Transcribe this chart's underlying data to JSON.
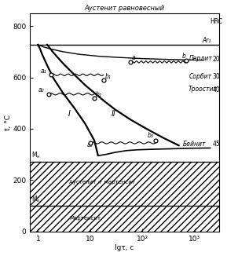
{
  "title": "Аустенит равновесный",
  "xlabel": "lgτ, c",
  "ylabel": "t, °C",
  "xlim_log": [
    0.7,
    3000
  ],
  "ylim": [
    0,
    850
  ],
  "Ar1_y": 727,
  "Mn_y": 270,
  "Mk_y": 100,
  "curve_I_x": [
    1.0,
    1.1,
    1.2,
    1.4,
    1.6,
    2.0,
    3.0,
    5.0,
    8.0,
    12.0,
    14.0
  ],
  "curve_I_y": [
    727,
    710,
    690,
    660,
    635,
    595,
    540,
    480,
    420,
    355,
    300
  ],
  "curve_II_x": [
    1.5,
    2.0,
    3.0,
    5.0,
    8.0,
    12.0,
    18.0,
    30.0,
    60.0,
    120.0,
    250.0,
    500.0
  ],
  "curve_II_y": [
    727,
    695,
    655,
    610,
    570,
    540,
    510,
    475,
    435,
    400,
    365,
    335
  ],
  "top_shelf_x": [
    1.0,
    1.3,
    1.8,
    3.0,
    6.0,
    15.0,
    40.0,
    100.0,
    300.0,
    700.0,
    1500.0
  ],
  "top_shelf_y": [
    727,
    718,
    710,
    700,
    690,
    682,
    677,
    673,
    670,
    668,
    667
  ],
  "bainite_bot_x": [
    14.0,
    20.0,
    30.0,
    50.0,
    80.0,
    150.0,
    350.0,
    800.0,
    2000.0
  ],
  "bainite_bot_y": [
    295,
    300,
    308,
    315,
    318,
    320,
    322,
    324,
    325
  ],
  "point_a_x": 60,
  "point_a_y": 660,
  "point_b_x": 700,
  "point_b_y": 666,
  "point_a1_x": 1.8,
  "point_a1_y": 610,
  "point_b1_x": 18.0,
  "point_b1_y": 590,
  "point_a2_x": 1.6,
  "point_a2_y": 535,
  "point_b2_x": 12.0,
  "point_b2_y": 520,
  "point_a3_x": 10.0,
  "point_a3_y": 345,
  "point_b3_x": 180.0,
  "point_b3_y": 355,
  "xticks": [
    1,
    10,
    100,
    1000
  ],
  "xtick_labels": [
    "1",
    "10",
    "10²",
    "10³"
  ],
  "yticks": [
    0,
    200,
    400,
    600,
    800
  ]
}
